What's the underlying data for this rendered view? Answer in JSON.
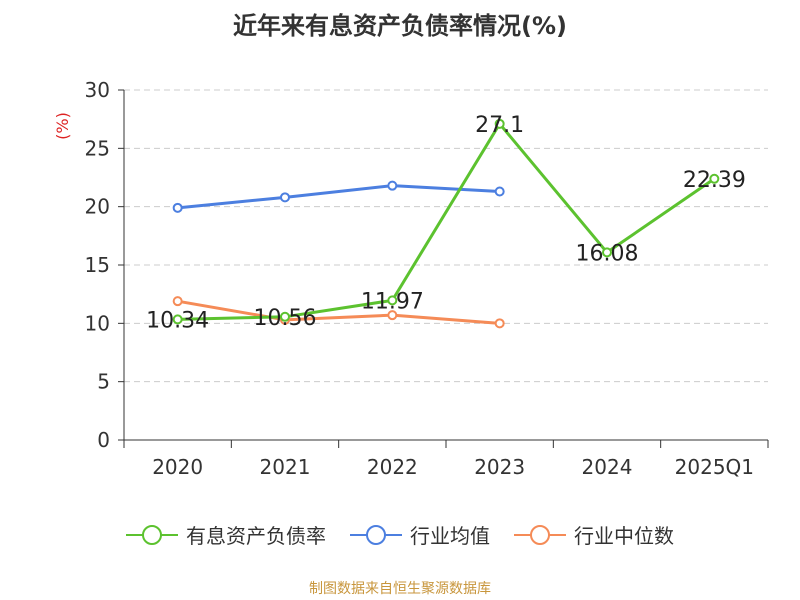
{
  "title": "近年来有息资产负债率情况(%)",
  "source": "制图数据来自恒生聚源数据库",
  "chart_data": {
    "type": "line",
    "title": "近年来有息资产负债率情况(%)",
    "ylabel": "(%)",
    "xlabel": "",
    "categories": [
      "2020",
      "2021",
      "2022",
      "2023",
      "2024",
      "2025Q1"
    ],
    "ylim": [
      0,
      30
    ],
    "yticks": [
      0,
      5,
      10,
      15,
      20,
      25,
      30
    ],
    "grid": true,
    "legend_position": "bottom",
    "series": [
      {
        "name": "有息资产负债率",
        "color": "#5cc22f",
        "values": [
          10.34,
          10.56,
          11.97,
          27.1,
          16.08,
          22.39
        ],
        "labels": [
          "10.34",
          "10.56",
          "11.97",
          "27.1",
          "16.08",
          "22.39"
        ],
        "show_labels": true
      },
      {
        "name": "行业均值",
        "color": "#4c7fe0",
        "values": [
          19.9,
          20.8,
          21.8,
          21.3,
          null,
          null
        ],
        "show_labels": false
      },
      {
        "name": "行业中位数",
        "color": "#f58b57",
        "values": [
          11.9,
          10.3,
          10.7,
          10.0,
          null,
          null
        ],
        "show_labels": false
      }
    ]
  }
}
